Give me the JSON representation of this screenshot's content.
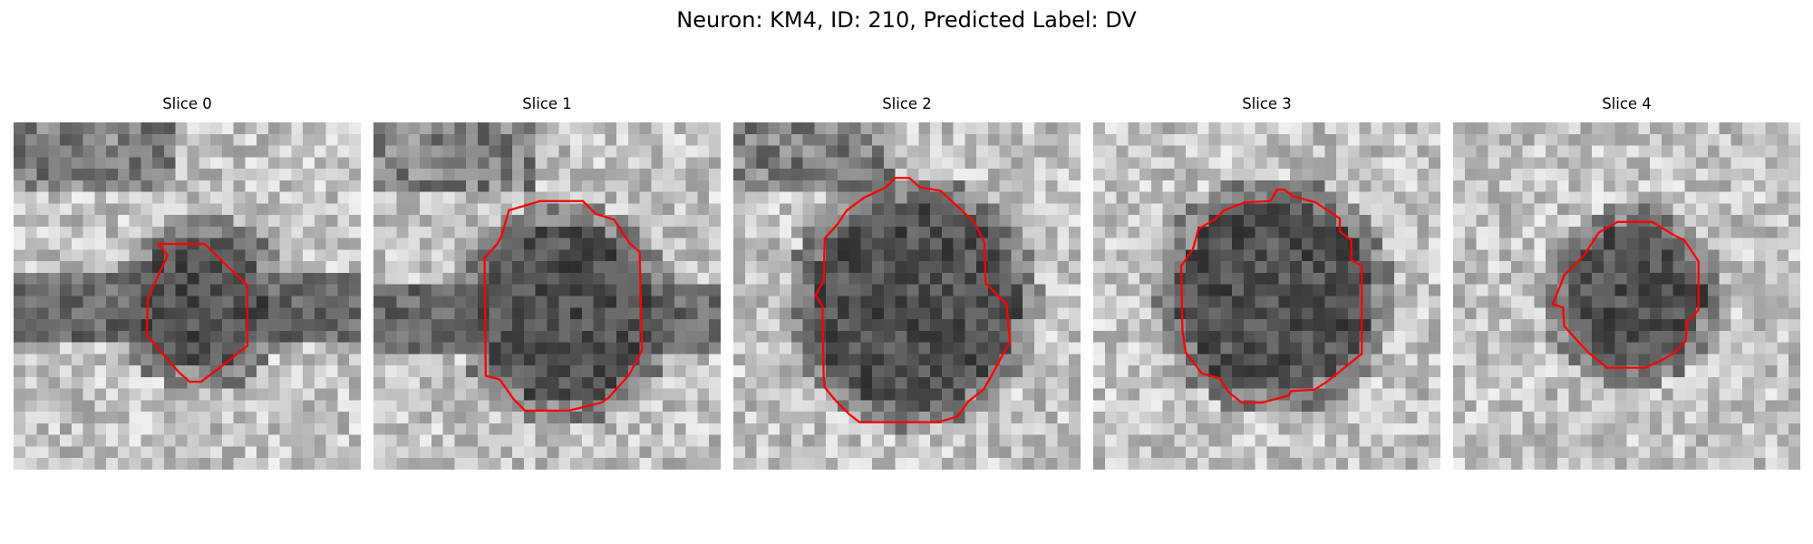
{
  "figure": {
    "title": "Neuron: KM4, ID: 210, Predicted Label: DV"
  },
  "slices": [
    {
      "title": "Slice 0",
      "seed": 11,
      "dark_center": [
        0.54,
        0.52
      ],
      "dark_radius": 0.19,
      "band": true
    },
    {
      "title": "Slice 1",
      "seed": 23,
      "dark_center": [
        0.55,
        0.55
      ],
      "dark_radius": 0.26,
      "band": true
    },
    {
      "title": "Slice 2",
      "seed": 37,
      "dark_center": [
        0.52,
        0.52
      ],
      "dark_radius": 0.3,
      "band": false
    },
    {
      "title": "Slice 3",
      "seed": 41,
      "dark_center": [
        0.52,
        0.5
      ],
      "dark_radius": 0.28,
      "band": false
    },
    {
      "title": "Slice 4",
      "seed": 53,
      "dark_center": [
        0.52,
        0.5
      ],
      "dark_radius": 0.2,
      "band": false
    }
  ],
  "overlay": {
    "contour_color": "#ff0000"
  }
}
